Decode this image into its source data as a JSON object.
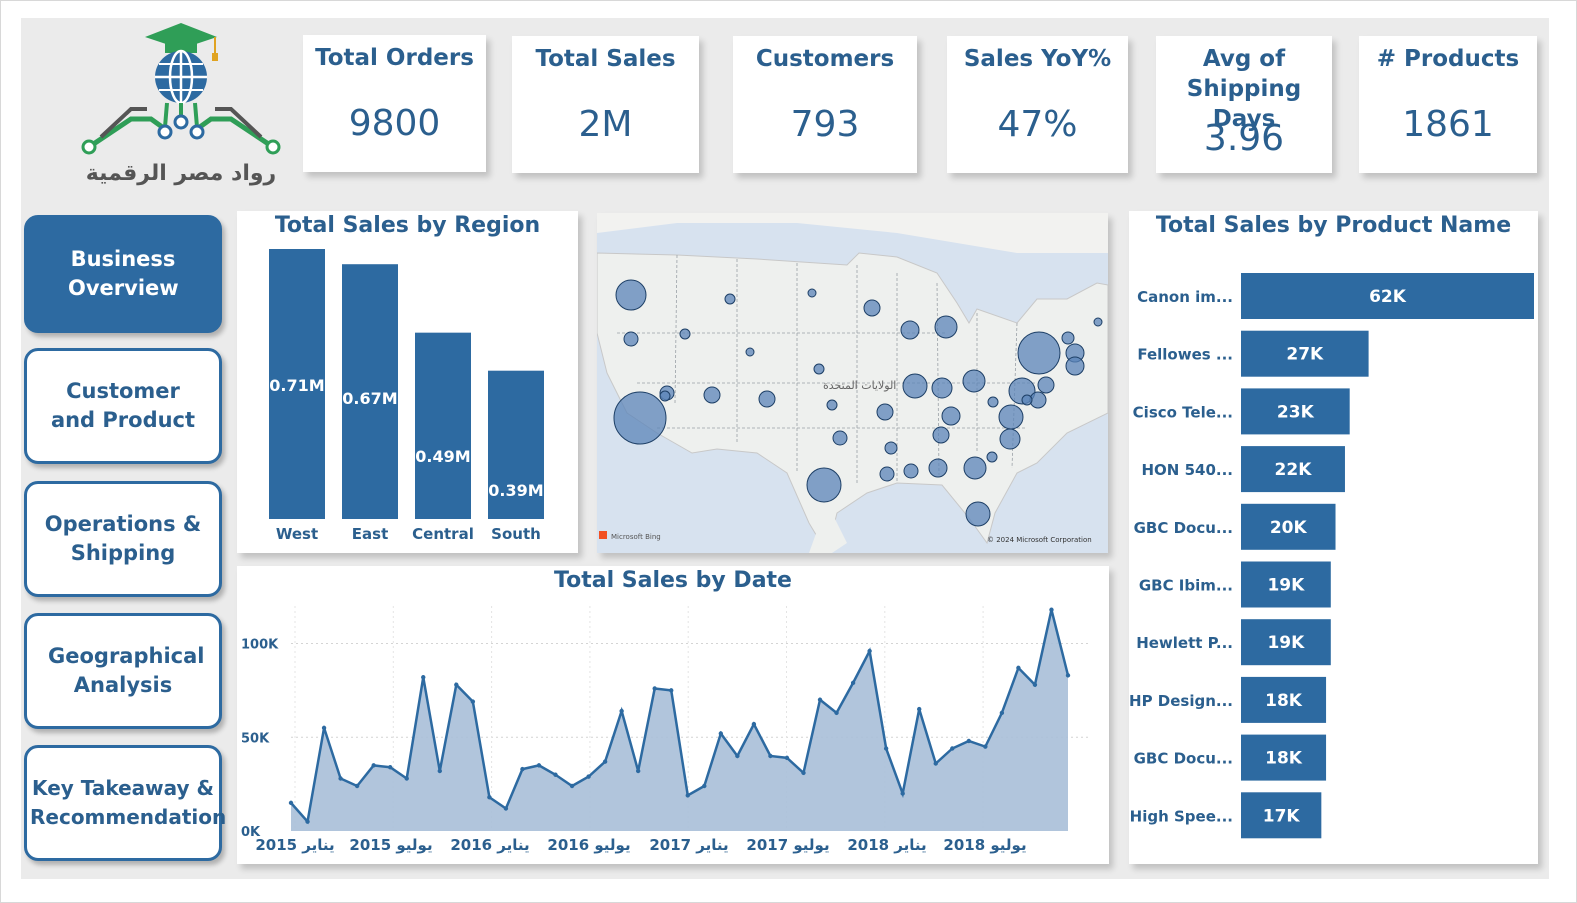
{
  "logo": {
    "caption": "رواد مصر الرقمية"
  },
  "kpis": [
    {
      "label": "Total Orders",
      "value": "9800"
    },
    {
      "label": "Total Sales",
      "value": "2M"
    },
    {
      "label": "Customers",
      "value": "793"
    },
    {
      "label": "Sales YoY%",
      "value": "47%"
    },
    {
      "label": "Avg of Shipping Days",
      "value": "3.96"
    },
    {
      "label": "# Products",
      "value": "1861"
    }
  ],
  "nav": [
    {
      "label": "Business Overview",
      "active": true
    },
    {
      "label": "Customer and Product",
      "active": false
    },
    {
      "label": "Operations & Shipping",
      "active": false
    },
    {
      "label": "Geographical Analysis",
      "active": false
    },
    {
      "label": "Key Takeaway & Recommendation",
      "active": false
    }
  ],
  "map": {
    "country_label": "الولايات المتحدة",
    "attribution_left": "Microsoft Bing",
    "attribution_right": "© 2024 Microsoft Corporation",
    "bubble_color": "#5b84b8"
  },
  "colors": {
    "accent": "#2d6aa1",
    "title": "#2b5f8e",
    "area_fill": "#a9bfd8",
    "canvas": "#ebebeb"
  },
  "chart_data": [
    {
      "type": "bar",
      "title": "Total Sales by Region",
      "categories": [
        "West",
        "East",
        "Central",
        "South"
      ],
      "values": [
        0.71,
        0.67,
        0.49,
        0.39
      ],
      "data_labels": [
        "0.71M",
        "0.67M",
        "0.49M",
        "0.39M"
      ],
      "ylim": [
        0,
        0.71
      ]
    },
    {
      "type": "area",
      "title": "Total Sales by Date",
      "y_ticks": [
        0,
        50000,
        100000
      ],
      "y_tick_labels": [
        "0K",
        "50K",
        "100K"
      ],
      "ylim": [
        0,
        120000
      ],
      "x_tick_labels": [
        "يناير 2015",
        "يوليو 2015",
        "يناير 2016",
        "يوليو 2016",
        "يناير 2017",
        "يوليو 2017",
        "يناير 2018",
        "يوليو 2018"
      ],
      "values": [
        15000,
        5000,
        55000,
        28000,
        24000,
        35000,
        34000,
        28000,
        82000,
        32000,
        78000,
        69000,
        18000,
        12000,
        33000,
        35000,
        30000,
        24000,
        29000,
        37000,
        64000,
        32000,
        76000,
        75000,
        19000,
        24000,
        52000,
        40000,
        57000,
        40000,
        39000,
        31000,
        70000,
        63000,
        79000,
        96000,
        44000,
        20000,
        65000,
        36000,
        44000,
        48000,
        45000,
        63000,
        87000,
        78000,
        118000,
        83000
      ]
    },
    {
      "type": "bar",
      "title": "Total Sales by Product Name",
      "orientation": "horizontal",
      "categories": [
        "Canon im...",
        "Fellowes ...",
        "Cisco Tele...",
        "HON 540...",
        "GBC Docu...",
        "GBC Ibim...",
        "Hewlett P...",
        "HP Design...",
        "GBC Docu...",
        "High Spee..."
      ],
      "values": [
        62,
        27,
        23,
        22,
        20,
        19,
        19,
        18,
        18,
        17
      ],
      "data_labels": [
        "62K",
        "27K",
        "23K",
        "22K",
        "20K",
        "19K",
        "19K",
        "18K",
        "18K",
        "17K"
      ],
      "xlim": [
        0,
        62
      ]
    }
  ]
}
